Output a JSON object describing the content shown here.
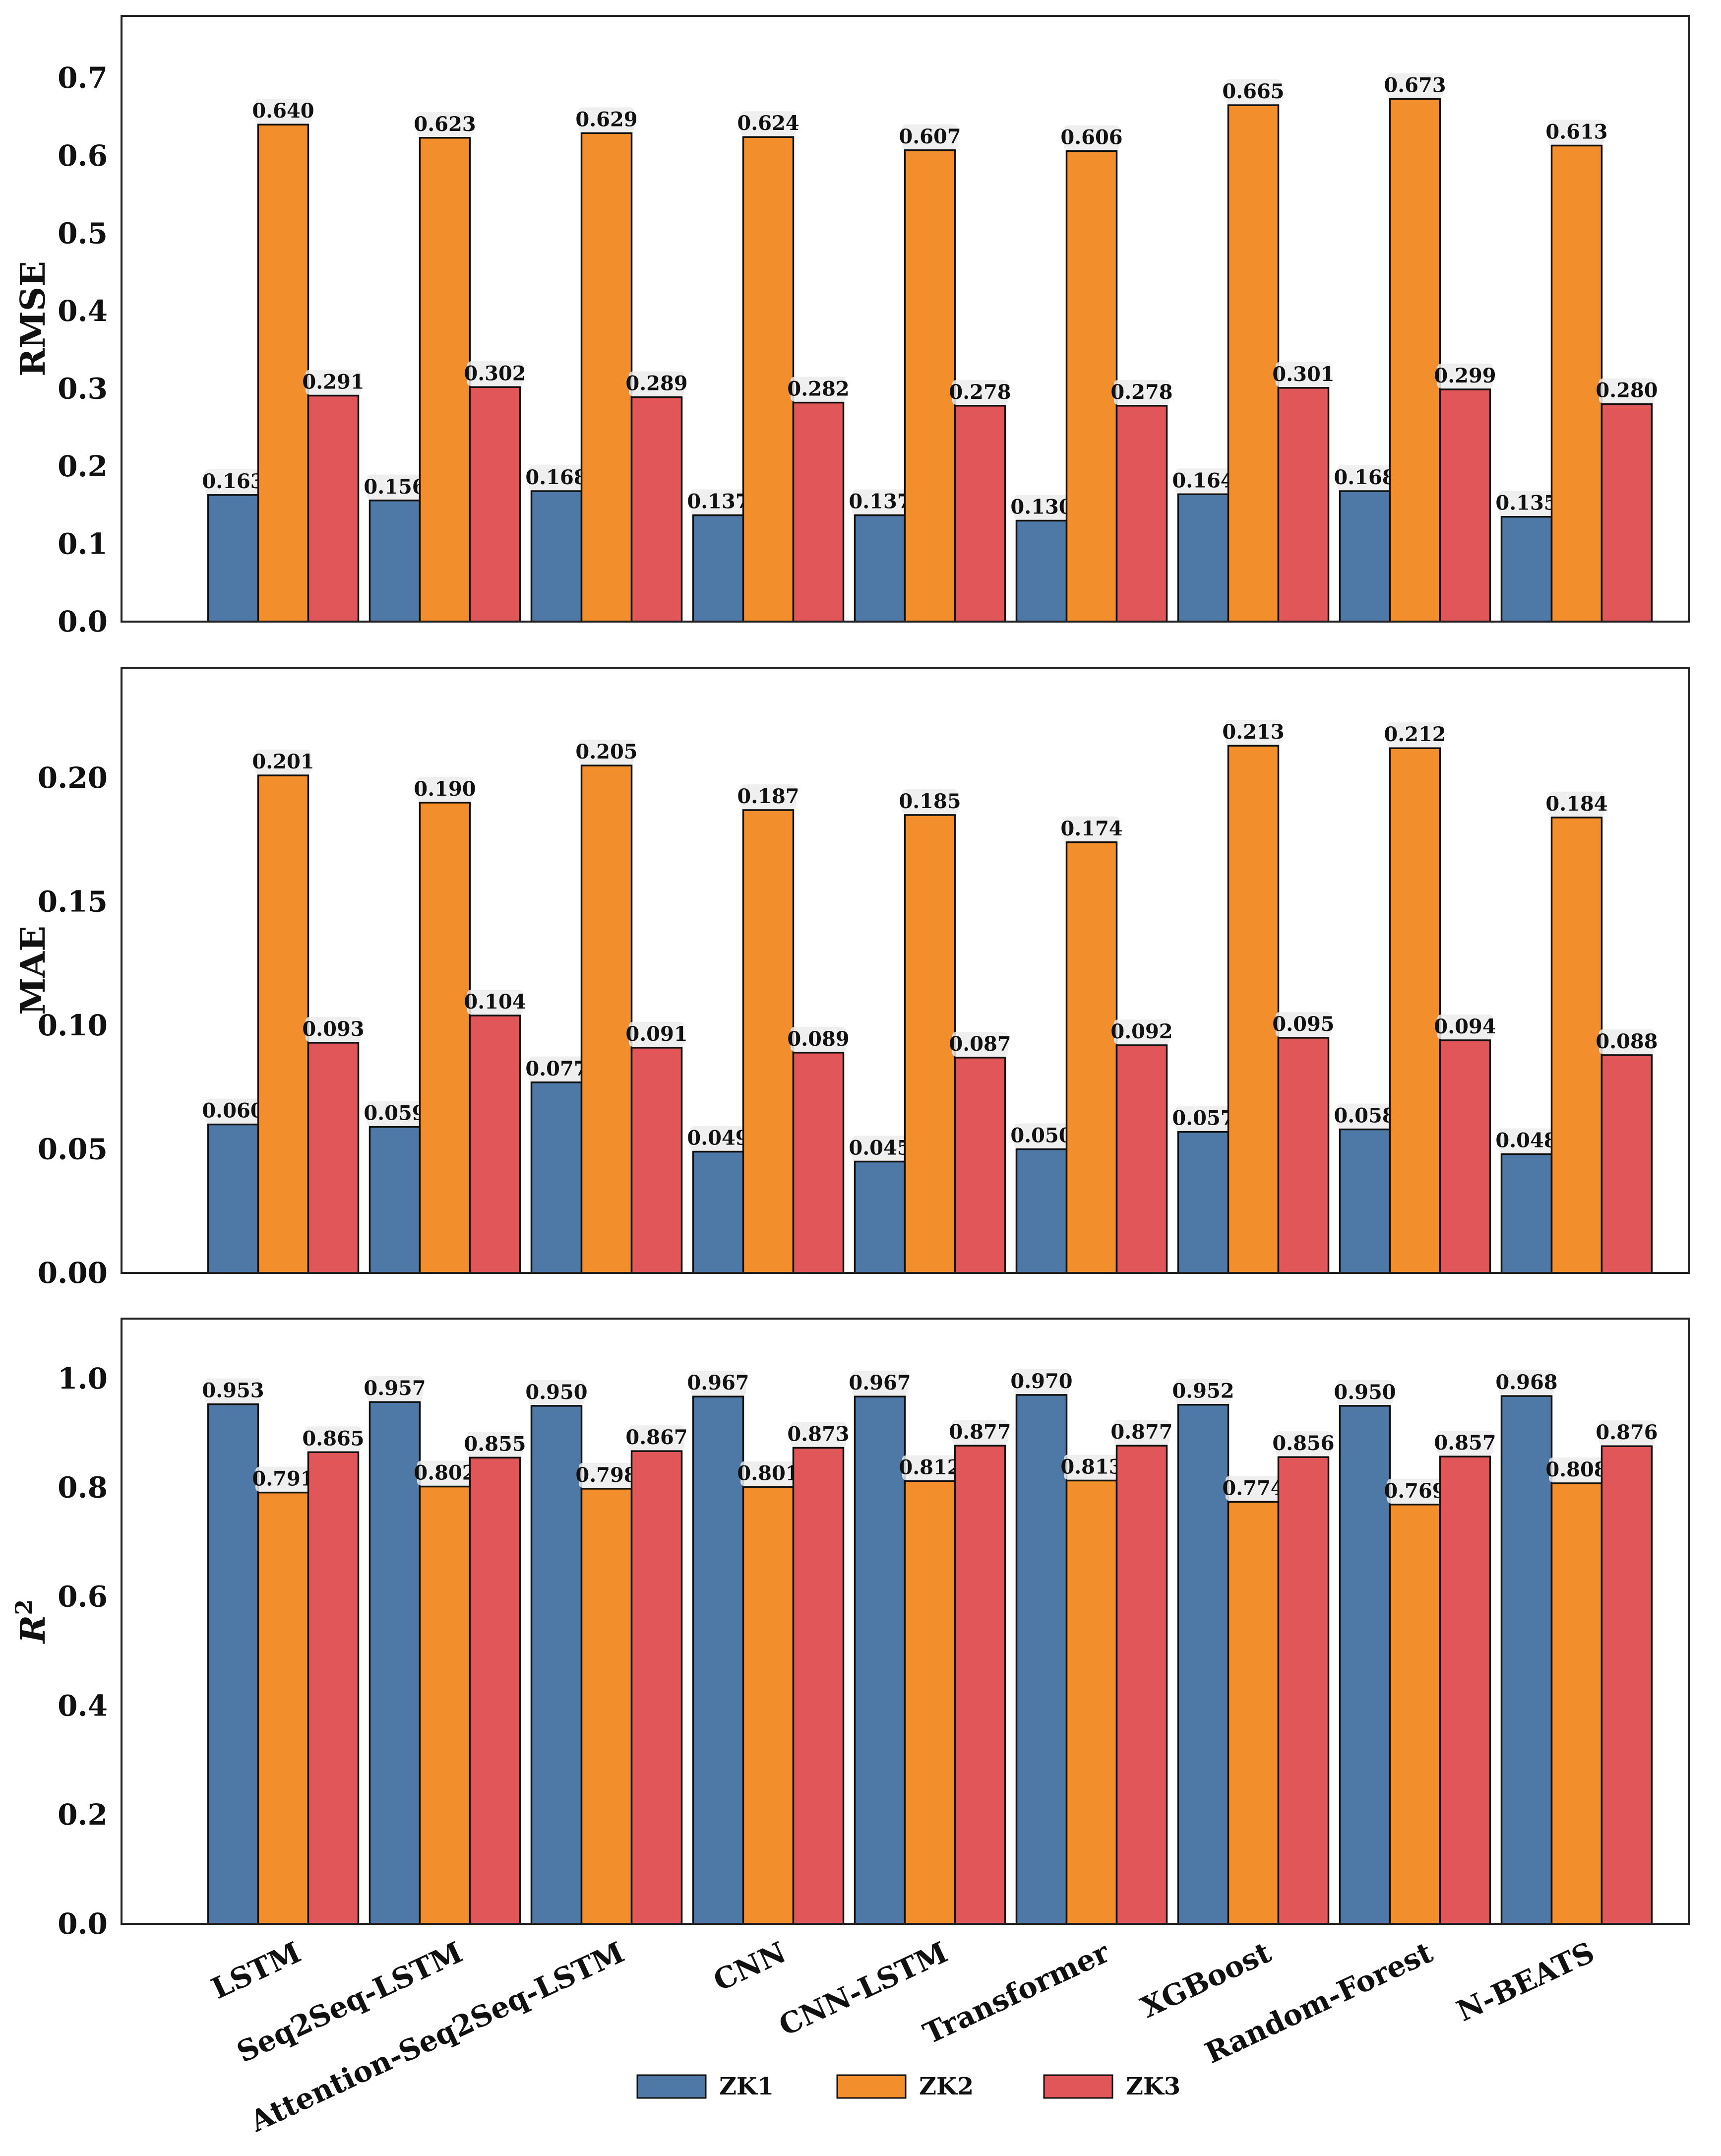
{
  "chart_data": [
    {
      "type": "bar",
      "categories": [
        "LSTM",
        "Seq2Seq-LSTM",
        "Attention-Seq2Seq-LSTM",
        "CNN",
        "CNN-LSTM",
        "Transformer",
        "XGBoost",
        "Random-Forest",
        "N-BEATS"
      ],
      "ylabel": "RMSE",
      "ylim": [
        0,
        0.78
      ],
      "yticks": [
        "0.0",
        "0.1",
        "0.2",
        "0.3",
        "0.4",
        "0.5",
        "0.6",
        "0.7"
      ],
      "series": [
        {
          "name": "ZK1",
          "values": [
            0.163,
            0.156,
            0.168,
            0.137,
            0.137,
            0.13,
            0.164,
            0.168,
            0.135
          ],
          "labels": [
            "0.163",
            "0.156",
            "0.168",
            "0.137",
            "0.137",
            "0.130",
            "0.164",
            "0.168",
            "0.135"
          ]
        },
        {
          "name": "ZK2",
          "values": [
            0.64,
            0.623,
            0.629,
            0.624,
            0.607,
            0.606,
            0.665,
            0.673,
            0.613
          ],
          "labels": [
            "0.640",
            "0.623",
            "0.629",
            "0.624",
            "0.607",
            "0.606",
            "0.665",
            "0.673",
            "0.613"
          ]
        },
        {
          "name": "ZK3",
          "values": [
            0.291,
            0.302,
            0.289,
            0.282,
            0.278,
            0.278,
            0.301,
            0.299,
            0.28
          ],
          "labels": [
            "0.291",
            "0.302",
            "0.289",
            "0.282",
            "0.278",
            "0.278",
            "0.301",
            "0.299",
            "0.280"
          ]
        }
      ]
    },
    {
      "type": "bar",
      "categories": [
        "LSTM",
        "Seq2Seq-LSTM",
        "Attention-Seq2Seq-LSTM",
        "CNN",
        "CNN-LSTM",
        "Transformer",
        "XGBoost",
        "Random-Forest",
        "N-BEATS"
      ],
      "ylabel": "MAE",
      "ylim": [
        0,
        0.2445
      ],
      "yticks": [
        "0.00",
        "0.05",
        "0.10",
        "0.15",
        "0.20"
      ],
      "series": [
        {
          "name": "ZK1",
          "values": [
            0.06,
            0.059,
            0.077,
            0.049,
            0.045,
            0.05,
            0.057,
            0.058,
            0.048
          ],
          "labels": [
            "0.060",
            "0.059",
            "0.077",
            "0.049",
            "0.045",
            "0.050",
            "0.057",
            "0.058",
            "0.048"
          ]
        },
        {
          "name": "ZK2",
          "values": [
            0.201,
            0.19,
            0.205,
            0.187,
            0.185,
            0.174,
            0.213,
            0.212,
            0.184
          ],
          "labels": [
            "0.201",
            "0.190",
            "0.205",
            "0.187",
            "0.185",
            "0.174",
            "0.213",
            "0.212",
            "0.184"
          ]
        },
        {
          "name": "ZK3",
          "values": [
            0.093,
            0.104,
            0.091,
            0.089,
            0.087,
            0.092,
            0.095,
            0.094,
            0.088
          ],
          "labels": [
            "0.093",
            "0.104",
            "0.091",
            "0.089",
            "0.087",
            "0.092",
            "0.095",
            "0.094",
            "0.088"
          ]
        }
      ]
    },
    {
      "type": "bar",
      "categories": [
        "LSTM",
        "Seq2Seq-LSTM",
        "Attention-Seq2Seq-LSTM",
        "CNN",
        "CNN-LSTM",
        "Transformer",
        "XGBoost",
        "Random-Forest",
        "N-BEATS"
      ],
      "ylabel": "R",
      "ylabel_superscript": "2",
      "ylim": [
        0,
        1.11
      ],
      "yticks": [
        "0.0",
        "0.2",
        "0.4",
        "0.6",
        "0.8",
        "1.0"
      ],
      "series": [
        {
          "name": "ZK1",
          "values": [
            0.953,
            0.957,
            0.95,
            0.967,
            0.967,
            0.97,
            0.952,
            0.95,
            0.968
          ],
          "labels": [
            "0.953",
            "0.957",
            "0.950",
            "0.967",
            "0.967",
            "0.970",
            "0.952",
            "0.950",
            "0.968"
          ]
        },
        {
          "name": "ZK2",
          "values": [
            0.791,
            0.802,
            0.798,
            0.801,
            0.812,
            0.813,
            0.774,
            0.769,
            0.808
          ],
          "labels": [
            "0.791",
            "0.802",
            "0.798",
            "0.801",
            "0.812",
            "0.813",
            "0.774",
            "0.769",
            "0.808"
          ]
        },
        {
          "name": "ZK3",
          "values": [
            0.865,
            0.855,
            0.867,
            0.873,
            0.877,
            0.877,
            0.856,
            0.857,
            0.876
          ],
          "labels": [
            "0.865",
            "0.855",
            "0.867",
            "0.873",
            "0.877",
            "0.877",
            "0.856",
            "0.857",
            "0.876"
          ]
        }
      ]
    }
  ],
  "legend": {
    "placement": "bottom-center",
    "items": [
      {
        "name": "ZK1",
        "color": "#4e79a7"
      },
      {
        "name": "ZK2",
        "color": "#f28e2b"
      },
      {
        "name": "ZK3",
        "color": "#e15759"
      }
    ]
  },
  "series_colors": [
    "#4e79a7",
    "#f28e2b",
    "#e15759"
  ],
  "grid": false
}
